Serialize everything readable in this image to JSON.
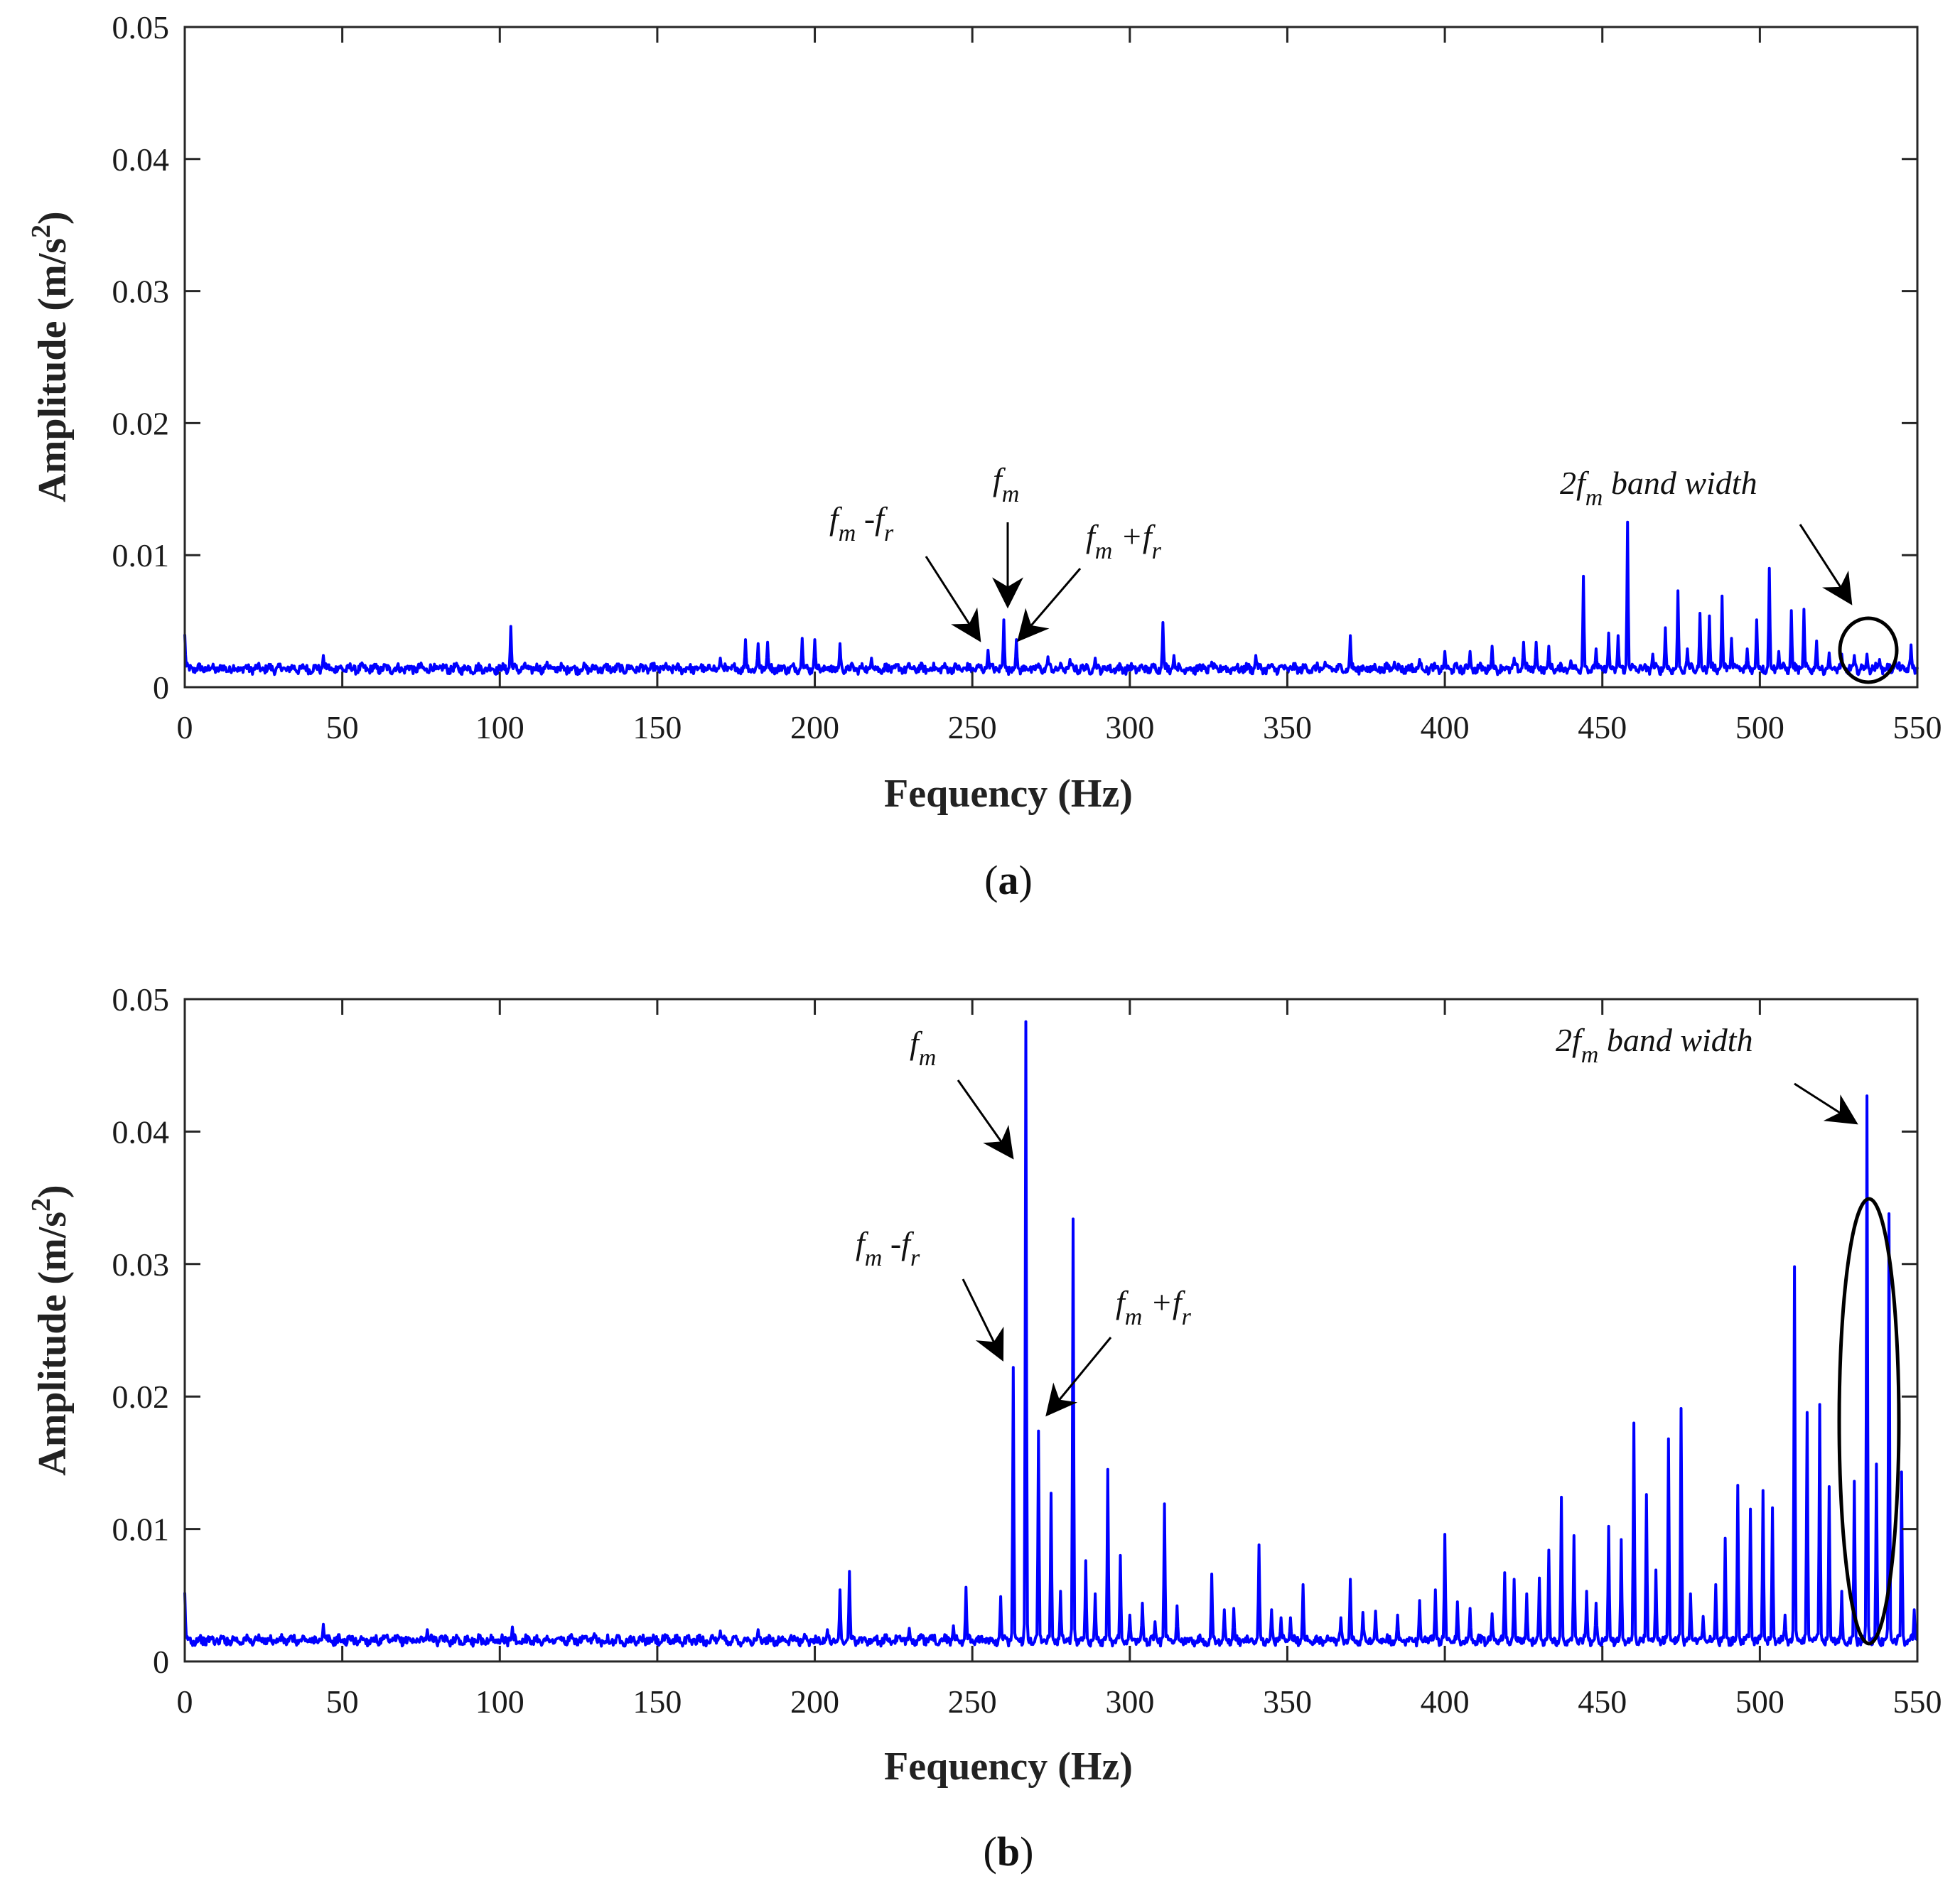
{
  "chart_data": [
    {
      "id": "a",
      "panel_label": "a",
      "type": "line",
      "xlabel": "Fequency (Hz)",
      "ylabel": "Amplitude (m/s",
      "ylabel_sup": "2",
      "ylabel_close": ")",
      "xlim": [
        0,
        550
      ],
      "ylim": [
        0,
        0.05
      ],
      "xticks": [
        0,
        50,
        100,
        150,
        200,
        250,
        300,
        350,
        400,
        450,
        500,
        550
      ],
      "yticks": [
        0,
        0.01,
        0.02,
        0.03,
        0.04,
        0.05
      ],
      "ytick_labels": [
        "0",
        "0.01",
        "0.02",
        "0.03",
        "0.04",
        "0.05"
      ],
      "baseline": 0.0014,
      "series": [
        {
          "name": "spectrum",
          "color": "#0000ff"
        }
      ],
      "peaks": [
        [
          0,
          0.004
        ],
        [
          44,
          0.0024
        ],
        [
          103.5,
          0.0046
        ],
        [
          115,
          0.0019
        ],
        [
          170,
          0.0022
        ],
        [
          178,
          0.0036
        ],
        [
          182,
          0.0033
        ],
        [
          185,
          0.0034
        ],
        [
          196,
          0.0037
        ],
        [
          200,
          0.0036
        ],
        [
          208,
          0.0033
        ],
        [
          218,
          0.0022
        ],
        [
          255,
          0.0028
        ],
        [
          260,
          0.0051
        ],
        [
          264,
          0.0036
        ],
        [
          274,
          0.0023
        ],
        [
          281,
          0.0021
        ],
        [
          289,
          0.0022
        ],
        [
          310.5,
          0.0049
        ],
        [
          314,
          0.0024
        ],
        [
          326,
          0.0019
        ],
        [
          340,
          0.0024
        ],
        [
          362,
          0.0019
        ],
        [
          370,
          0.0039
        ],
        [
          384,
          0.0019
        ],
        [
          392,
          0.0021
        ],
        [
          400,
          0.0027
        ],
        [
          408,
          0.0027
        ],
        [
          415,
          0.0031
        ],
        [
          422,
          0.0022
        ],
        [
          425,
          0.0034
        ],
        [
          429,
          0.0034
        ],
        [
          433,
          0.0031
        ],
        [
          440,
          0.002
        ],
        [
          444,
          0.0084
        ],
        [
          448,
          0.0029
        ],
        [
          452,
          0.0041
        ],
        [
          455,
          0.0039
        ],
        [
          458,
          0.0125
        ],
        [
          466,
          0.0025
        ],
        [
          470,
          0.0045
        ],
        [
          474,
          0.0073
        ],
        [
          477,
          0.0029
        ],
        [
          481,
          0.0056
        ],
        [
          484,
          0.0054
        ],
        [
          488,
          0.0069
        ],
        [
          491,
          0.0037
        ],
        [
          496,
          0.0029
        ],
        [
          499,
          0.0051
        ],
        [
          503,
          0.009
        ],
        [
          506,
          0.0027
        ],
        [
          510,
          0.0058
        ],
        [
          514,
          0.0059
        ],
        [
          518,
          0.0035
        ],
        [
          522,
          0.0026
        ],
        [
          526,
          0.0025
        ],
        [
          530,
          0.0024
        ],
        [
          534,
          0.0025
        ],
        [
          538,
          0.0021
        ],
        [
          543,
          0.0021
        ],
        [
          548,
          0.0032
        ]
      ],
      "annotations": [
        {
          "base": "f",
          "sub": "m",
          "rest": "",
          "sub2": ""
        },
        {
          "base": "f",
          "sub": "m",
          "rest": " -f",
          "sub2": "r"
        },
        {
          "base": "f",
          "sub": "m",
          "rest": " +f",
          "sub2": "r"
        },
        {
          "base": "2f",
          "sub": "m",
          "rest": " band width",
          "sub2": ""
        }
      ]
    },
    {
      "id": "b",
      "panel_label": "b",
      "type": "line",
      "xlabel": "Fequency (Hz)",
      "ylabel": "Amplitude (m/s",
      "ylabel_sup": "2",
      "ylabel_close": ")",
      "xlim": [
        0,
        550
      ],
      "ylim": [
        0,
        0.05
      ],
      "xticks": [
        0,
        50,
        100,
        150,
        200,
        250,
        300,
        350,
        400,
        450,
        500,
        550
      ],
      "yticks": [
        0,
        0.01,
        0.02,
        0.03,
        0.04,
        0.05
      ],
      "ytick_labels": [
        "0",
        "0.01",
        "0.02",
        "0.03",
        "0.04",
        "0.05"
      ],
      "baseline": 0.0016,
      "series": [
        {
          "name": "spectrum",
          "color": "#0000ff"
        }
      ],
      "peaks": [
        [
          0,
          0.0052
        ],
        [
          44,
          0.0028
        ],
        [
          77,
          0.0024
        ],
        [
          104,
          0.0026
        ],
        [
          130,
          0.0021
        ],
        [
          170,
          0.0023
        ],
        [
          182,
          0.0024
        ],
        [
          204,
          0.0024
        ],
        [
          208,
          0.0054
        ],
        [
          211,
          0.0068
        ],
        [
          230,
          0.0025
        ],
        [
          244,
          0.0027
        ],
        [
          248,
          0.0056
        ],
        [
          259,
          0.0049
        ],
        [
          263,
          0.0222
        ],
        [
          267,
          0.0483
        ],
        [
          271,
          0.0174
        ],
        [
          275,
          0.0127
        ],
        [
          278,
          0.0053
        ],
        [
          282,
          0.0334
        ],
        [
          286,
          0.0076
        ],
        [
          289,
          0.0051
        ],
        [
          293,
          0.0145
        ],
        [
          297,
          0.008
        ],
        [
          300,
          0.0035
        ],
        [
          304,
          0.0044
        ],
        [
          308,
          0.003
        ],
        [
          311,
          0.0119
        ],
        [
          315,
          0.0042
        ],
        [
          326,
          0.0066
        ],
        [
          330,
          0.0039
        ],
        [
          333,
          0.004
        ],
        [
          341,
          0.0088
        ],
        [
          345,
          0.0039
        ],
        [
          348,
          0.0033
        ],
        [
          351,
          0.0033
        ],
        [
          355,
          0.0058
        ],
        [
          367,
          0.0033
        ],
        [
          370,
          0.0062
        ],
        [
          374,
          0.0037
        ],
        [
          378,
          0.0038
        ],
        [
          385,
          0.0035
        ],
        [
          392,
          0.0046
        ],
        [
          397,
          0.0054
        ],
        [
          400,
          0.0096
        ],
        [
          404,
          0.0045
        ],
        [
          408,
          0.004
        ],
        [
          415,
          0.0036
        ],
        [
          419,
          0.0067
        ],
        [
          422,
          0.0062
        ],
        [
          426,
          0.0051
        ],
        [
          430,
          0.0063
        ],
        [
          433,
          0.0084
        ],
        [
          437,
          0.0124
        ],
        [
          441,
          0.0095
        ],
        [
          445,
          0.0053
        ],
        [
          448,
          0.0044
        ],
        [
          452,
          0.0102
        ],
        [
          456,
          0.0092
        ],
        [
          460,
          0.018
        ],
        [
          464,
          0.0126
        ],
        [
          467,
          0.0069
        ],
        [
          471,
          0.0168
        ],
        [
          475,
          0.0191
        ],
        [
          478,
          0.0051
        ],
        [
          482,
          0.0034
        ],
        [
          486,
          0.0058
        ],
        [
          489,
          0.0093
        ],
        [
          493,
          0.0133
        ],
        [
          497,
          0.0115
        ],
        [
          501,
          0.0129
        ],
        [
          504,
          0.0116
        ],
        [
          508,
          0.0035
        ],
        [
          511,
          0.0298
        ],
        [
          515,
          0.0188
        ],
        [
          519,
          0.0194
        ],
        [
          522,
          0.0132
        ],
        [
          526,
          0.0053
        ],
        [
          530,
          0.0136
        ],
        [
          534,
          0.0427
        ],
        [
          537,
          0.0149
        ],
        [
          541,
          0.0338
        ],
        [
          545,
          0.0143
        ],
        [
          549,
          0.0039
        ]
      ],
      "annotations": [
        {
          "base": "f",
          "sub": "m",
          "rest": "",
          "sub2": ""
        },
        {
          "base": "f",
          "sub": "m",
          "rest": " -f",
          "sub2": "r"
        },
        {
          "base": "f",
          "sub": "m",
          "rest": " +f",
          "sub2": "r"
        },
        {
          "base": "2f",
          "sub": "m",
          "rest": " band width",
          "sub2": ""
        }
      ]
    }
  ]
}
